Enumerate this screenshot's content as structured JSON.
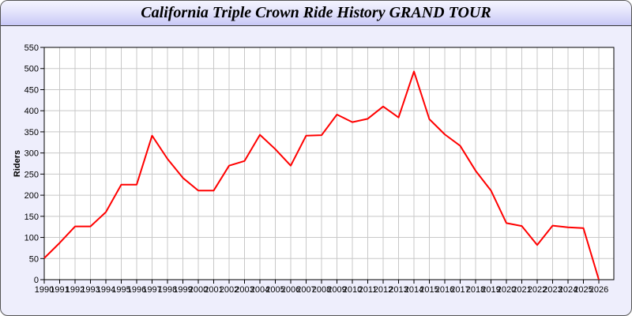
{
  "chart_data": {
    "type": "line",
    "title": "California Triple Crown Ride History GRAND TOUR",
    "xlabel": "",
    "ylabel": "Riders",
    "ylim": [
      0,
      550
    ],
    "yticks": [
      0,
      50,
      100,
      150,
      200,
      250,
      300,
      350,
      400,
      450,
      500,
      550
    ],
    "grid": true,
    "line_color": "#ff0000",
    "x": [
      "1990",
      "1991",
      "1992",
      "1993",
      "1994",
      "1995",
      "1996",
      "1997",
      "1998",
      "1999",
      "2000",
      "2001",
      "2002",
      "2003",
      "2004",
      "2005",
      "2006",
      "2007",
      "2008",
      "2009",
      "2010",
      "2011",
      "2012",
      "2013",
      "2014",
      "2015",
      "2016",
      "2017",
      "2018",
      "2019",
      "2020",
      "2021",
      "2022",
      "2023",
      "2024",
      "2025",
      "2026"
    ],
    "series": [
      {
        "values": [
          51,
          87,
          126,
          126,
          160,
          225,
          225,
          341,
          286,
          241,
          211,
          211,
          270,
          281,
          343,
          309,
          270,
          341,
          342,
          391,
          373,
          381,
          410,
          384,
          493,
          380,
          344,
          317,
          258,
          211,
          134,
          127,
          82,
          128,
          124,
          122,
          0
        ]
      }
    ]
  }
}
